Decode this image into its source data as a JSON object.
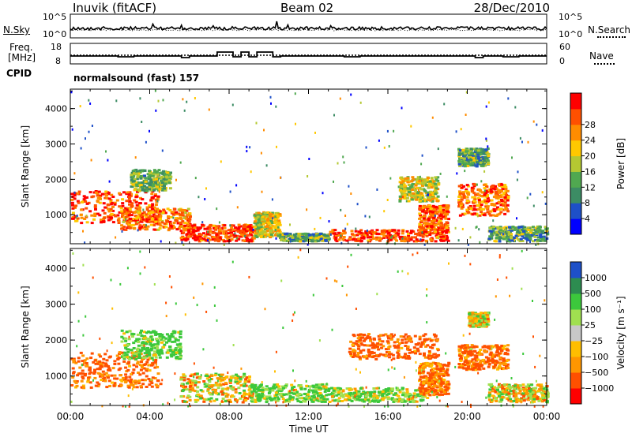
{
  "header": {
    "station": "Inuvik (fitACF)",
    "beam": "Beam 02",
    "date": "28/Dec/2010"
  },
  "noise_panel": {
    "left_label": "N.Sky",
    "right_label": "N.Search",
    "left_ticks": [
      "10^5",
      "10^0"
    ],
    "right_ticks": [
      "10^5",
      "10^0"
    ]
  },
  "freq_panel": {
    "left_label_1": "Freq.",
    "left_label_2": "[MHz]",
    "right_label": "Nave",
    "left_ticks": [
      "18",
      "8"
    ],
    "right_ticks": [
      "60",
      "0"
    ]
  },
  "cpid": {
    "label": "CPID",
    "value": "normalsound (fast) 157"
  },
  "colors": {
    "power": [
      "#0000ff",
      "#1e50c8",
      "#3c8c64",
      "#50a850",
      "#b4c832",
      "#ffc800",
      "#ff8c00",
      "#ff5000",
      "#ff0000"
    ],
    "velocity": [
      "#ff0000",
      "#ff5000",
      "#ff9600",
      "#ffbe00",
      "#c8c8c8",
      "#a0e050",
      "#3cc83c",
      "#2d8c50",
      "#1e50c8"
    ]
  },
  "chart_data": [
    {
      "type": "heatmap",
      "title": "",
      "xlabel": "Time UT",
      "ylabel": "Slant Range [km]",
      "x_ticks": [
        "00:00",
        "04:00",
        "08:00",
        "12:00",
        "16:00",
        "20:00",
        "00:00"
      ],
      "y_ticks": [
        1000,
        2000,
        3000,
        4000
      ],
      "xlim": [
        0,
        24
      ],
      "ylim": [
        180,
        4550
      ],
      "colorbar": {
        "label": "Power [dB]",
        "ticks": [
          "4",
          "8",
          "12",
          "16",
          "20",
          "24",
          "28"
        ],
        "range": [
          0,
          32
        ]
      },
      "regions": [
        {
          "x": [
            0,
            4.5
          ],
          "y": [
            800,
            1700
          ],
          "level": 27
        },
        {
          "x": [
            2.5,
            6
          ],
          "y": [
            600,
            1200
          ],
          "level": 24
        },
        {
          "x": [
            5.5,
            9.2
          ],
          "y": [
            280,
            750
          ],
          "level": 28
        },
        {
          "x": [
            9.2,
            10.5
          ],
          "y": [
            400,
            1100
          ],
          "level": 18
        },
        {
          "x": [
            10.5,
            13
          ],
          "y": [
            280,
            500
          ],
          "level": 12
        },
        {
          "x": [
            13,
            19
          ],
          "y": [
            280,
            600
          ],
          "level": 28
        },
        {
          "x": [
            17.5,
            19
          ],
          "y": [
            500,
            1300
          ],
          "level": 26
        },
        {
          "x": [
            16.5,
            18.5
          ],
          "y": [
            1400,
            2100
          ],
          "level": 18
        },
        {
          "x": [
            19.5,
            22
          ],
          "y": [
            1000,
            1900
          ],
          "level": 25
        },
        {
          "x": [
            19.5,
            21
          ],
          "y": [
            2400,
            2900
          ],
          "level": 12
        },
        {
          "x": [
            21,
            24
          ],
          "y": [
            280,
            700
          ],
          "level": 12
        },
        {
          "x": [
            3,
            5
          ],
          "y": [
            1700,
            2300
          ],
          "level": 14
        }
      ]
    },
    {
      "type": "heatmap",
      "title": "",
      "xlabel": "Time UT",
      "ylabel": "Slant Range [km]",
      "x_ticks": [
        "00:00",
        "04:00",
        "08:00",
        "12:00",
        "16:00",
        "20:00",
        "00:00"
      ],
      "y_ticks": [
        1000,
        2000,
        3000,
        4000
      ],
      "xlim": [
        0,
        24
      ],
      "ylim": [
        180,
        4550
      ],
      "colorbar": {
        "label": "Velocity [m s⁻¹]",
        "ticks": [
          "1000",
          "500",
          "100",
          "25",
          "−25",
          "−100",
          "−500",
          "−1000"
        ],
        "range": [
          -1200,
          1200
        ]
      },
      "regions": [
        {
          "x": [
            0,
            4.5
          ],
          "y": [
            700,
            1700
          ],
          "level": -150
        },
        {
          "x": [
            2.5,
            5.5
          ],
          "y": [
            1500,
            2300
          ],
          "level": 150
        },
        {
          "x": [
            5.5,
            9
          ],
          "y": [
            300,
            1100
          ],
          "level": 0
        },
        {
          "x": [
            9,
            13
          ],
          "y": [
            300,
            800
          ],
          "level": 120
        },
        {
          "x": [
            13,
            18
          ],
          "y": [
            300,
            700
          ],
          "level": 100
        },
        {
          "x": [
            17.5,
            19
          ],
          "y": [
            500,
            1400
          ],
          "level": -120
        },
        {
          "x": [
            14,
            18.5
          ],
          "y": [
            1500,
            2200
          ],
          "level": -150
        },
        {
          "x": [
            19.5,
            22
          ],
          "y": [
            1200,
            1900
          ],
          "level": -120
        },
        {
          "x": [
            20,
            21
          ],
          "y": [
            2400,
            2800
          ],
          "level": 0
        },
        {
          "x": [
            21,
            24
          ],
          "y": [
            300,
            800
          ],
          "level": 0
        }
      ]
    }
  ]
}
